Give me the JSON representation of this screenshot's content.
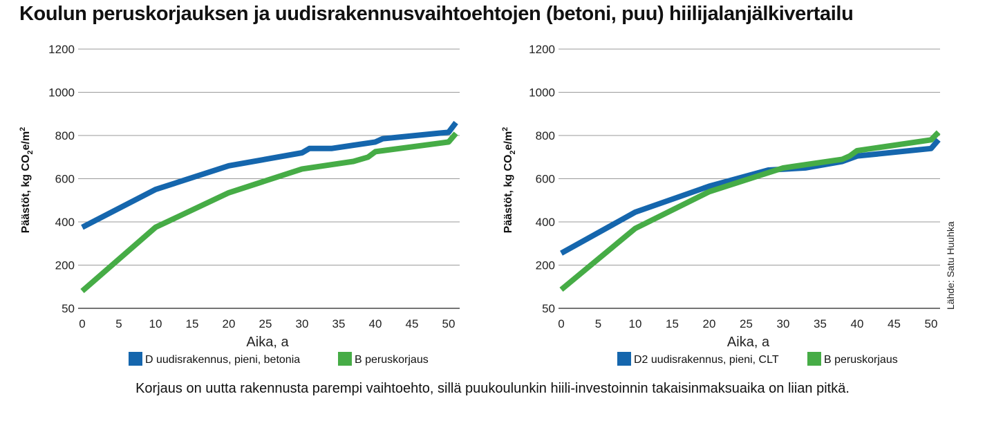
{
  "title": "Koulun peruskorjauksen ja uudisrakennusvaihtoehtojen (betoni, puu) hiilijalanjälkivertailu",
  "caption": "Korjaus on uutta rakennusta parempi vaihtoehto, sillä puukoulunkin hiili-investoinnin takaisinmaksuaika on liian pitkä.",
  "source_note": "Lähde: Satu Huuhka",
  "colors": {
    "blue": "#1566ad",
    "green": "#46ac46",
    "grid": "#9a9a9a"
  },
  "chart_data": [
    {
      "type": "line",
      "xlabel": "Aika, a",
      "ylabel": "Päästöt, kg CO2e/m2",
      "ylabel_main": "Päästöt, kg CO",
      "ylabel_sub": "2",
      "ylabel_mid": "e/m",
      "ylabel_sup": "2",
      "x_ticks": [
        0,
        5,
        10,
        15,
        20,
        25,
        30,
        35,
        40,
        45,
        50
      ],
      "y_ticks": [
        50,
        200,
        400,
        600,
        800,
        1000,
        1200
      ],
      "xlim": [
        0,
        51
      ],
      "ylim": [
        50,
        1200
      ],
      "grid": true,
      "legend_position": "bottom",
      "series": [
        {
          "name": "D uudisrakennus, pieni, betonia",
          "color": "#1566ad",
          "x": [
            0,
            10,
            20,
            30,
            31,
            34,
            40,
            41,
            50,
            51
          ],
          "y": [
            375,
            550,
            660,
            720,
            740,
            740,
            770,
            785,
            815,
            860
          ]
        },
        {
          "name": "B peruskorjaus",
          "color": "#46ac46",
          "x": [
            0,
            10,
            20,
            30,
            37,
            39,
            40,
            50,
            51
          ],
          "y": [
            110,
            375,
            535,
            645,
            680,
            700,
            725,
            770,
            810
          ]
        }
      ]
    },
    {
      "type": "line",
      "xlabel": "Aika, a",
      "ylabel": "Päästöt, kg CO2e/m2",
      "ylabel_main": "Päästöt, kg CO",
      "ylabel_sub": "2",
      "ylabel_mid": "e/m",
      "ylabel_sup": "2",
      "x_ticks": [
        0,
        5,
        10,
        15,
        20,
        25,
        30,
        35,
        40,
        45,
        50
      ],
      "y_ticks": [
        50,
        200,
        400,
        600,
        800,
        1000,
        1200
      ],
      "xlim": [
        0,
        51
      ],
      "ylim": [
        50,
        1200
      ],
      "grid": true,
      "legend_position": "bottom",
      "series": [
        {
          "name": "D2 uudisrakennus, pieni, CLT",
          "color": "#1566ad",
          "x": [
            0,
            10,
            20,
            28,
            33,
            38,
            40,
            50,
            51
          ],
          "y": [
            255,
            445,
            565,
            640,
            650,
            680,
            705,
            740,
            780
          ]
        },
        {
          "name": "B peruskorjaus",
          "color": "#46ac46",
          "x": [
            0,
            10,
            20,
            30,
            38,
            39,
            40,
            50,
            51
          ],
          "y": [
            115,
            370,
            540,
            650,
            690,
            705,
            730,
            780,
            815
          ]
        }
      ]
    }
  ]
}
